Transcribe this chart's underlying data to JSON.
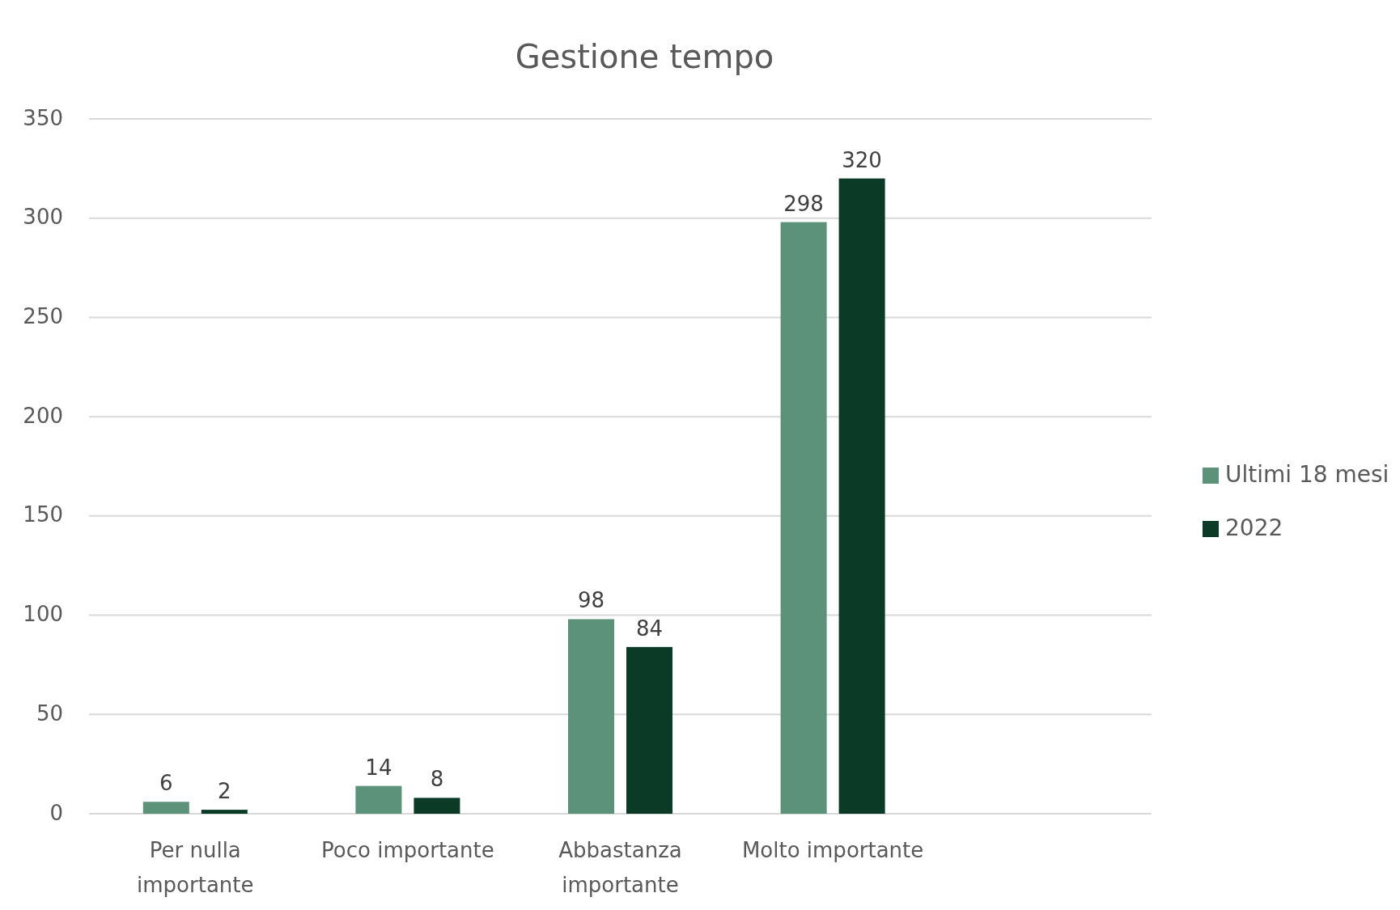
{
  "chart_data": {
    "type": "bar",
    "title": "Gestione tempo",
    "categories": [
      "Per nulla importante",
      "Poco importante",
      "Abbastanza importante",
      "Molto importante",
      null
    ],
    "series": [
      {
        "name": "Ultimi 18 mesi",
        "color": "#5b9279",
        "values": [
          6,
          14,
          98,
          298,
          null
        ]
      },
      {
        "name": "2022",
        "color": "#0b3a26",
        "values": [
          2,
          8,
          84,
          320,
          null
        ]
      }
    ],
    "ylim": [
      0,
      350
    ],
    "yticks": [
      0,
      50,
      100,
      150,
      200,
      250,
      300,
      350
    ],
    "grid": "y",
    "data_labels": true,
    "legend": "right"
  }
}
